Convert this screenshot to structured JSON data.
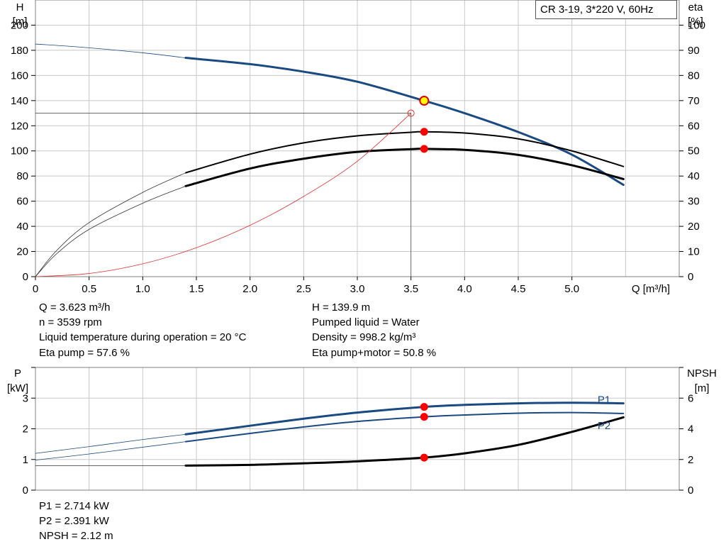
{
  "model_label": "CR 3-19, 3*220 V, 60Hz",
  "colors": {
    "head": "#1a4a82",
    "eta": "#000000",
    "system": "#e03030",
    "marker": "#ff0000",
    "grid": "#c8c8c8",
    "p": "#1a4a82",
    "npsh": "#000000"
  },
  "top_info": {
    "left": [
      "Q = 3.623 m³/h",
      "n = 3539 rpm",
      "Liquid temperature during operation = 20 °C",
      "Eta pump = 57.6 %"
    ],
    "right": [
      "H = 139.9 m",
      "Pumped liquid = Water",
      "Density = 998.2 kg/m³",
      "Eta pump+motor = 50.8 %"
    ]
  },
  "bottom_info": [
    "P1 = 2.714 kW",
    "P2 = 2.391 kW",
    "NPSH = 2.12 m"
  ],
  "chart_data": [
    {
      "type": "line",
      "ylabel_left": [
        "H",
        "[m]"
      ],
      "ylabel_right": [
        "eta",
        "[%]"
      ],
      "xlabel": "Q [m³/h]",
      "xlim": [
        0,
        6
      ],
      "ylim_left": [
        0,
        220
      ],
      "ylim_right": [
        0,
        110
      ],
      "x_ticks": [
        "0",
        "0.5",
        "1.0",
        "1.5",
        "2.0",
        "2.5",
        "3.0",
        "3.5",
        "4.0",
        "4.5",
        "5.0"
      ],
      "x_tick_values": [
        0,
        0.5,
        1,
        1.5,
        2,
        2.5,
        3,
        3.5,
        4,
        4.5,
        5
      ],
      "y_left_ticks": [
        "0",
        "20",
        "40",
        "60",
        "80",
        "100",
        "120",
        "140",
        "160",
        "180",
        "200"
      ],
      "y_right_ticks": [
        "0",
        "10",
        "20",
        "30",
        "40",
        "50",
        "60",
        "70",
        "80",
        "90",
        "100"
      ],
      "grid": true,
      "series": [
        {
          "axis": "left",
          "style": "thick-blue",
          "x": [
            1.4,
            2.0,
            2.5,
            3.0,
            3.623,
            4.0,
            4.5,
            5.0,
            5.48
          ],
          "y": [
            174,
            169,
            163,
            155,
            139.9,
            130,
            115,
            97,
            73
          ]
        },
        {
          "axis": "left",
          "style": "thin-blue",
          "x": [
            0,
            0.5,
            1.0,
            1.4
          ],
          "y": [
            185,
            182,
            178,
            174
          ]
        },
        {
          "axis": "right",
          "style": "medium-black",
          "x": [
            1.4,
            2.0,
            2.5,
            3.0,
            3.5,
            3.623,
            4.0,
            4.5,
            5.0,
            5.48
          ],
          "y": [
            41.3,
            48.7,
            53.2,
            56.0,
            57.4,
            57.6,
            57.1,
            54.8,
            50.0,
            43.8
          ]
        },
        {
          "axis": "right",
          "style": "thick-black",
          "x": [
            1.4,
            2.0,
            2.5,
            3.0,
            3.5,
            3.623,
            4.0,
            4.5,
            5.0,
            5.48
          ],
          "y": [
            36.0,
            43.0,
            46.9,
            49.6,
            50.7,
            50.8,
            50.4,
            48.4,
            44.3,
            38.8
          ]
        },
        {
          "axis": "right",
          "style": "thin-black",
          "x": [
            0,
            0.2,
            0.5,
            1.0,
            1.4
          ],
          "y": [
            0,
            10.5,
            21.5,
            33.5,
            41.3
          ]
        },
        {
          "axis": "right",
          "style": "thin-black",
          "x": [
            0,
            0.2,
            0.5,
            1.0,
            1.4
          ],
          "y": [
            0,
            9.2,
            18.8,
            29.2,
            36.0
          ]
        },
        {
          "axis": "left",
          "style": "thin-red",
          "x": [
            0,
            0.5,
            1.0,
            1.5,
            2.0,
            2.5,
            3.0,
            3.5
          ],
          "y": [
            0,
            2.5,
            10.2,
            23.0,
            40.8,
            63.8,
            91.8,
            130
          ]
        }
      ],
      "markers": [
        {
          "axis": "left",
          "x": 3.623,
          "y": 139.9,
          "kind": "yellow"
        },
        {
          "axis": "right",
          "x": 3.623,
          "y": 57.6,
          "kind": "red"
        },
        {
          "axis": "right",
          "x": 3.623,
          "y": 50.8,
          "kind": "red"
        },
        {
          "axis": "left",
          "x": 3.5,
          "y": 130,
          "kind": "hollow"
        }
      ],
      "duty_line": {
        "x": 3.5,
        "y": 130
      }
    },
    {
      "type": "line",
      "ylabel_left": [
        "P",
        "[kW]"
      ],
      "ylabel_right": [
        "NPSH",
        "[m]"
      ],
      "xlim": [
        0,
        6
      ],
      "ylim_left": [
        0,
        4
      ],
      "ylim_right": [
        0,
        8
      ],
      "y_left_ticks": [
        "0",
        "1",
        "2",
        "3"
      ],
      "y_right_ticks": [
        "0",
        "2",
        "4",
        "6"
      ],
      "grid": true,
      "series": [
        {
          "name": "P1",
          "axis": "left",
          "style": "thick-blue",
          "x": [
            1.4,
            2.0,
            2.5,
            3.0,
            3.623,
            4.0,
            4.5,
            5.0,
            5.48
          ],
          "y": [
            1.82,
            2.1,
            2.33,
            2.53,
            2.714,
            2.78,
            2.83,
            2.85,
            2.83
          ]
        },
        {
          "axis": "left",
          "style": "thin-blue",
          "x": [
            0,
            0.5,
            1.0,
            1.4
          ],
          "y": [
            1.2,
            1.42,
            1.65,
            1.82
          ]
        },
        {
          "name": "P2",
          "axis": "left",
          "style": "medium-blue",
          "x": [
            1.4,
            2.0,
            2.5,
            3.0,
            3.623,
            4.0,
            4.5,
            5.0,
            5.48
          ],
          "y": [
            1.58,
            1.85,
            2.06,
            2.24,
            2.391,
            2.45,
            2.51,
            2.53,
            2.5
          ]
        },
        {
          "axis": "left",
          "style": "thin-blue",
          "x": [
            0,
            0.5,
            1.0,
            1.4
          ],
          "y": [
            0.98,
            1.18,
            1.4,
            1.58
          ]
        },
        {
          "axis": "right",
          "style": "thick-black",
          "x": [
            1.4,
            2.0,
            2.5,
            3.0,
            3.623,
            4.0,
            4.5,
            5.0,
            5.48
          ],
          "y": [
            1.6,
            1.65,
            1.75,
            1.88,
            2.12,
            2.4,
            2.95,
            3.8,
            4.75
          ]
        },
        {
          "axis": "right",
          "style": "thin-black",
          "x": [
            0,
            1.4
          ],
          "y": [
            1.6,
            1.6
          ]
        }
      ],
      "markers": [
        {
          "axis": "left",
          "x": 3.623,
          "y": 2.714,
          "kind": "red"
        },
        {
          "axis": "left",
          "x": 3.623,
          "y": 2.391,
          "kind": "red"
        },
        {
          "axis": "right",
          "x": 3.623,
          "y": 2.12,
          "kind": "red"
        }
      ],
      "series_labels": [
        {
          "text": "P1",
          "x": 5.3,
          "y": 2.95
        },
        {
          "text": "P2",
          "x": 5.3,
          "y": 2.1
        }
      ]
    }
  ]
}
